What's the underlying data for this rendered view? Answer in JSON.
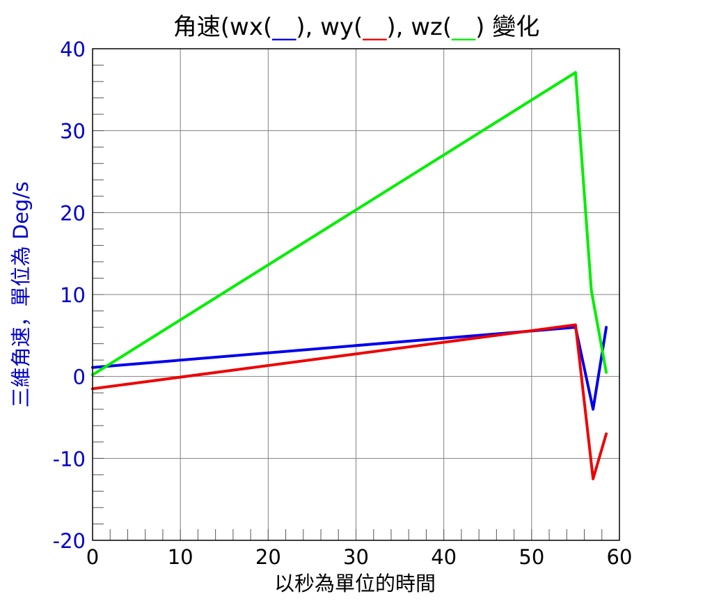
{
  "chart_data": {
    "type": "line",
    "title": {
      "prefix": "角速(wx(",
      "wx_marker": "__",
      "mid1": "), wy(",
      "wy_marker": "__",
      "mid2": "), wz(",
      "wz_marker": "__",
      "suffix": ") 變化"
    },
    "xlabel": "以秒為單位的時間",
    "ylabel": "三維角速，單位為 Deg/s",
    "xlim": [
      0,
      60
    ],
    "ylim": [
      -20,
      40
    ],
    "x_ticks": [
      0,
      10,
      20,
      30,
      40,
      50,
      60
    ],
    "y_ticks": [
      40,
      30,
      20,
      10,
      0,
      -10,
      -20
    ],
    "grid": true,
    "series": [
      {
        "color": "#0000ee",
        "x": [
          0,
          55,
          57,
          58.5
        ],
        "y": [
          1.1,
          6.0,
          -4.0,
          6.0
        ]
      },
      {
        "color": "#ee0000",
        "x": [
          0,
          55,
          57,
          58.5
        ],
        "y": [
          -1.5,
          6.3,
          -12.5,
          -7.0
        ]
      },
      {
        "color": "#00ee00",
        "x": [
          0,
          55,
          56.8,
          58.5
        ],
        "y": [
          0.2,
          37.1,
          10.5,
          0.5
        ]
      }
    ]
  },
  "colors": {
    "axis_text": "#0000cc",
    "grid": "#808080",
    "wx": "#0000ee",
    "wy": "#ee0000",
    "wz": "#00ee00"
  }
}
